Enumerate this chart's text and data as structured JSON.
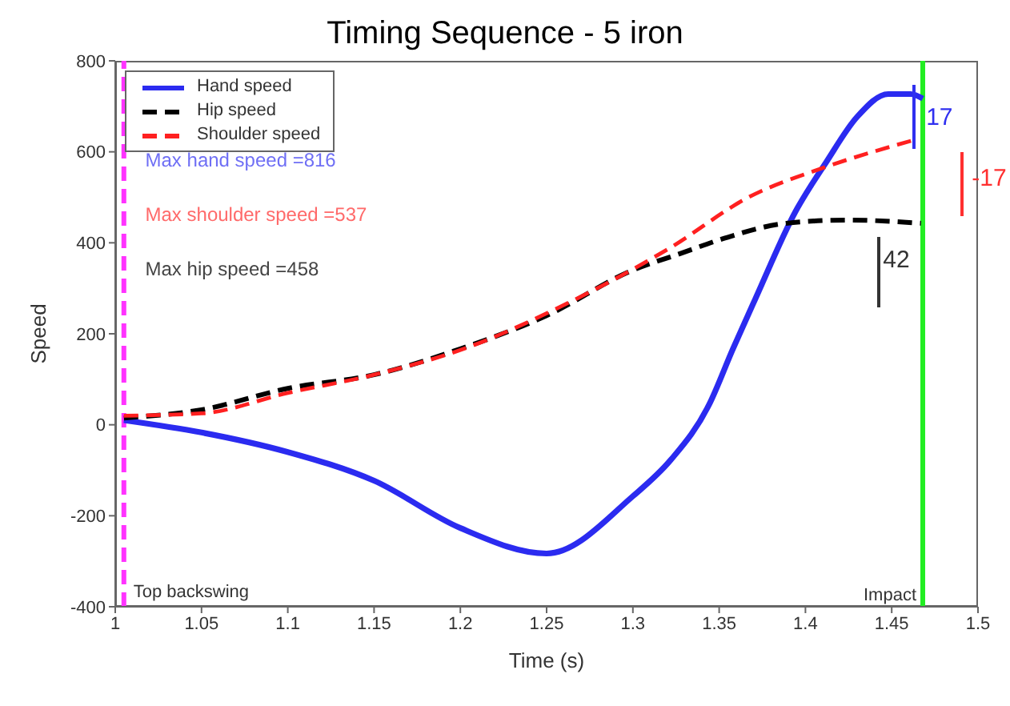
{
  "chart_data": {
    "type": "line",
    "title": "Timing Sequence - 5 iron",
    "xlabel": "Time (s)",
    "ylabel": "Speed",
    "xlim": [
      1,
      1.5
    ],
    "xticks": [
      1,
      1.05,
      1.1,
      1.15,
      1.2,
      1.25,
      1.3,
      1.35,
      1.4,
      1.45,
      1.5
    ],
    "ylim": [
      -400,
      800
    ],
    "yticks": [
      -400,
      -200,
      0,
      200,
      400,
      600,
      800
    ],
    "grid": false,
    "legend": "top left",
    "marker": "none",
    "series": [
      {
        "name": "Hand speed",
        "color": "#2b2bf0",
        "line_style": "solid",
        "x": [
          1.005,
          1.05,
          1.1,
          1.15,
          1.2,
          1.25,
          1.3,
          1.322,
          1.344,
          1.358,
          1.371,
          1.394,
          1.412,
          1.43,
          1.448,
          1.461,
          1.468
        ],
        "values": [
          10,
          -17,
          -60,
          -123,
          -227,
          -283,
          -157,
          -77,
          43,
          167,
          277,
          467,
          577,
          677,
          727,
          727,
          717
        ]
      },
      {
        "name": "Hip speed",
        "color": "#000000",
        "line_style": "dashed",
        "x": [
          1.005,
          1.05,
          1.1,
          1.15,
          1.2,
          1.25,
          1.3,
          1.328,
          1.353,
          1.389,
          1.425,
          1.467
        ],
        "values": [
          15,
          33,
          80,
          110,
          167,
          240,
          340,
          377,
          410,
          443,
          450,
          443
        ]
      },
      {
        "name": "Shoulder speed",
        "color": "#ff2020",
        "line_style": "dashed",
        "x": [
          1.005,
          1.05,
          1.1,
          1.15,
          1.202,
          1.262,
          1.322,
          1.367,
          1.412,
          1.464
        ],
        "values": [
          20,
          25,
          70,
          110,
          167,
          267,
          390,
          500,
          567,
          627
        ]
      }
    ],
    "ref_lines": [
      {
        "axis": "x",
        "value": 1.005,
        "label": "Top backswing",
        "color": "#ff33ff",
        "line_style": "dashed"
      },
      {
        "axis": "x",
        "value": 1.468,
        "label": "Impact",
        "color": "#22ee22",
        "line_style": "solid"
      }
    ],
    "annotations": [
      "Max hand speed =816",
      "Max shoulder speed =537",
      "Max hip speed =458",
      "17",
      "-17",
      "42"
    ]
  }
}
